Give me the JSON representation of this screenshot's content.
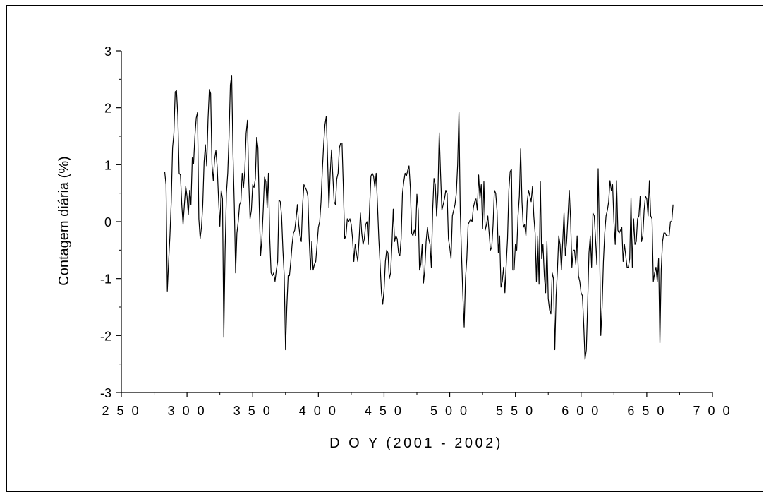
{
  "chart_data": {
    "type": "line",
    "title": "",
    "xlabel": "D O Y  (2001 - 2002)",
    "ylabel": "Contagem diária (%)",
    "xlim": [
      250,
      700
    ],
    "ylim": [
      -3,
      3
    ],
    "x_major_ticks": [
      250,
      300,
      350,
      400,
      450,
      500,
      550,
      600,
      650,
      700
    ],
    "y_major_ticks": [
      -3,
      -2,
      -1,
      0,
      1,
      2,
      3
    ],
    "x_tick_labels": [
      "2 5 0",
      "3 0 0",
      "3 5 0",
      "4 0 0",
      "4 5 0",
      "5 0 0",
      "5 5 0",
      "6 0 0",
      "6 5 0",
      "7 0 0"
    ],
    "y_tick_labels": [
      "-3",
      "-2",
      "-1",
      "0",
      "1",
      "2",
      "3"
    ],
    "grid": false,
    "line_color": "#000000",
    "series": [
      {
        "x": [
          283,
          284,
          285,
          286,
          287,
          288,
          289,
          290,
          291,
          292,
          293,
          294,
          295,
          296,
          297,
          298,
          299,
          300,
          301,
          302,
          303,
          304,
          305,
          306,
          307,
          308,
          309,
          310,
          311,
          312,
          313,
          314,
          315,
          316,
          317,
          318,
          319,
          320,
          321,
          322,
          323,
          324,
          325,
          326,
          327,
          328,
          329,
          330,
          331,
          332,
          333,
          334,
          335,
          336,
          337,
          338,
          339,
          340,
          341,
          342,
          343,
          344,
          345,
          346,
          347,
          348,
          349,
          350,
          351,
          352,
          353,
          354,
          355,
          356,
          357,
          358,
          359,
          360,
          361,
          362,
          363,
          364,
          365,
          366,
          367,
          368,
          369,
          370,
          371,
          372,
          373,
          374,
          375,
          376,
          377,
          378,
          379,
          380,
          381,
          382,
          383,
          384,
          385,
          386,
          387,
          388,
          389,
          390,
          391,
          392,
          393,
          394,
          395,
          396,
          397,
          398,
          399,
          400,
          401,
          402,
          403,
          404,
          405,
          406,
          407,
          408,
          409,
          410,
          411,
          412,
          413,
          414,
          415,
          416,
          417,
          418,
          419,
          420,
          421,
          422,
          423,
          424,
          425,
          426,
          427,
          428,
          429,
          430,
          431,
          432,
          433,
          434,
          435,
          436,
          437,
          438,
          439,
          440,
          441,
          442,
          443,
          444,
          445,
          446,
          447,
          448,
          449,
          450,
          451,
          452,
          453,
          454,
          455,
          456,
          457,
          458,
          459,
          460,
          461,
          462,
          463,
          464,
          465,
          466,
          467,
          468,
          469,
          470,
          471,
          472,
          473,
          474,
          475,
          476,
          477,
          478,
          479,
          480,
          481,
          482,
          483,
          484,
          485,
          486,
          487,
          488,
          489,
          490,
          491,
          492,
          493,
          494,
          495,
          496,
          497,
          498,
          499,
          500,
          501,
          502,
          503,
          504,
          505,
          506,
          507,
          508,
          509,
          510,
          511,
          512,
          513,
          514,
          515,
          516,
          517,
          518,
          519,
          520,
          521,
          522,
          523,
          524,
          525,
          526,
          527,
          528,
          529,
          530,
          531,
          532,
          533,
          534,
          535,
          536,
          537,
          538,
          539,
          540,
          541,
          542,
          543,
          544,
          545,
          546,
          547,
          548,
          549,
          550,
          551,
          552,
          553,
          554,
          555,
          556,
          557,
          558,
          559,
          560,
          561,
          562,
          563,
          564,
          565,
          566,
          567,
          568,
          569,
          570,
          571,
          572,
          573,
          574,
          575,
          576,
          577,
          578,
          579,
          580,
          581,
          582,
          583,
          584,
          585,
          586,
          587,
          588,
          589,
          590,
          591,
          592,
          593,
          594,
          595,
          596,
          597,
          598,
          599,
          600,
          601,
          602,
          603,
          604,
          605,
          606,
          607,
          608,
          609,
          610,
          611,
          612,
          613,
          614,
          615,
          616,
          617,
          618,
          619,
          620,
          621,
          622,
          623,
          624,
          625,
          626,
          627,
          628,
          629,
          630,
          631,
          632,
          633,
          634,
          635,
          636,
          637,
          638,
          639,
          640,
          641,
          642,
          643,
          644,
          645,
          646,
          647,
          648,
          649,
          650,
          651,
          652,
          653,
          654,
          655,
          656,
          657,
          658,
          659,
          660,
          661,
          662,
          663,
          664,
          665,
          666,
          667,
          668,
          669,
          670
        ],
        "y": [
          0.88,
          0.65,
          -1.22,
          -0.7,
          -0.25,
          0.35,
          1.3,
          1.55,
          2.28,
          2.3,
          1.85,
          0.85,
          0.82,
          0.3,
          -0.05,
          0.3,
          0.62,
          0.45,
          0.12,
          0.55,
          0.3,
          1.12,
          1.02,
          1.5,
          1.82,
          1.92,
          0.05,
          -0.3,
          -0.1,
          0.3,
          1.05,
          1.35,
          0.98,
          1.8,
          2.32,
          2.25,
          1.0,
          0.72,
          1.1,
          1.25,
          0.95,
          0.4,
          -0.08,
          0.55,
          0.4,
          -2.03,
          -0.5,
          0.5,
          0.85,
          1.5,
          2.4,
          2.57,
          1.2,
          0.3,
          -0.9,
          -0.2,
          0.0,
          0.3,
          0.35,
          0.85,
          0.6,
          0.9,
          1.55,
          1.78,
          0.7,
          0.05,
          0.2,
          0.65,
          0.6,
          0.75,
          1.48,
          1.3,
          0.25,
          -0.6,
          -0.3,
          0.2,
          0.78,
          0.7,
          0.25,
          0.85,
          -0.3,
          -0.9,
          -0.95,
          -0.9,
          -1.05,
          -0.85,
          -0.7,
          0.38,
          0.35,
          0.1,
          -0.5,
          -0.95,
          -2.25,
          -1.5,
          -0.95,
          -0.95,
          -0.7,
          -0.4,
          -0.2,
          -0.15,
          0.05,
          0.3,
          -0.05,
          -0.25,
          -0.35,
          0.3,
          0.65,
          0.6,
          0.55,
          0.45,
          -0.3,
          -0.85,
          -0.35,
          -0.85,
          -0.75,
          -0.7,
          -0.4,
          -0.1,
          0.0,
          0.35,
          0.9,
          1.35,
          1.7,
          1.85,
          1.1,
          0.25,
          0.85,
          1.26,
          0.8,
          0.35,
          0.3,
          0.75,
          0.85,
          1.3,
          1.38,
          1.38,
          0.6,
          -0.3,
          -0.25,
          0.05,
          0.0,
          0.05,
          -0.05,
          -0.3,
          -0.7,
          -0.4,
          -0.55,
          -0.7,
          -0.3,
          0.15,
          -0.2,
          -0.4,
          -0.3,
          -0.05,
          0.0,
          -0.4,
          0.25,
          0.8,
          0.85,
          0.8,
          0.6,
          0.85,
          0.3,
          -0.3,
          -0.75,
          -1.25,
          -1.45,
          -1.2,
          -0.7,
          -0.5,
          -0.55,
          -1.0,
          -0.9,
          -0.4,
          0.22,
          -0.35,
          -0.25,
          -0.3,
          -0.55,
          -0.6,
          -0.3,
          0.5,
          0.7,
          0.85,
          0.8,
          0.9,
          0.98,
          0.6,
          -0.2,
          -0.25,
          -0.15,
          -0.25,
          0.48,
          0.2,
          -0.85,
          -0.75,
          -0.4,
          -1.08,
          -0.85,
          -0.35,
          -0.1,
          -0.3,
          -0.4,
          -0.8,
          0.2,
          0.76,
          0.65,
          0.1,
          0.5,
          1.56,
          0.85,
          0.2,
          0.3,
          0.4,
          0.55,
          0.5,
          -0.3,
          -0.45,
          -0.65,
          0.1,
          0.2,
          0.3,
          0.5,
          1.0,
          1.92,
          0.2,
          -0.6,
          -1.3,
          -1.85,
          -1.0,
          -0.65,
          -0.05,
          0.0,
          0.05,
          0.0,
          0.25,
          0.35,
          0.4,
          0.2,
          0.82,
          0.4,
          0.65,
          -0.12,
          0.7,
          -0.15,
          -0.05,
          0.1,
          -0.2,
          -0.5,
          -0.45,
          -0.05,
          0.55,
          0.5,
          0.2,
          -0.55,
          -0.25,
          -1.15,
          -1.05,
          -0.8,
          -1.25,
          -0.75,
          -0.3,
          0.55,
          0.88,
          0.92,
          -0.85,
          -0.85,
          -0.4,
          -0.5,
          0.1,
          0.45,
          1.28,
          0.35,
          -0.1,
          -0.05,
          -0.25,
          0.35,
          0.55,
          0.45,
          0.35,
          0.62,
          0.1,
          -0.2,
          -1.05,
          -0.25,
          -1.1,
          0.7,
          -0.65,
          -0.4,
          -0.95,
          -1.25,
          -0.35,
          -1.35,
          -1.55,
          -1.62,
          -0.9,
          -1.0,
          -2.25,
          -1.3,
          -0.85,
          -0.25,
          -0.4,
          -0.85,
          -0.35,
          0.15,
          -0.6,
          -0.35,
          0.1,
          0.55,
          0.05,
          -0.8,
          -0.5,
          -0.5,
          -0.75,
          -0.25,
          -0.95,
          -1.05,
          -1.25,
          -1.3,
          -1.8,
          -2.42,
          -2.25,
          -1.45,
          -0.55,
          -0.25,
          -0.8,
          0.15,
          0.1,
          -0.3,
          -0.75,
          0.93,
          -0.3,
          -2.0,
          -1.5,
          -0.7,
          -0.2,
          0.1,
          0.2,
          0.35,
          0.72,
          0.55,
          0.65,
          0.0,
          -0.4,
          0.72,
          -0.15,
          -0.2,
          -0.15,
          -0.1,
          -0.7,
          -0.4,
          -0.6,
          -0.8,
          -0.8,
          -0.65,
          0.42,
          -0.8,
          0.05,
          -0.4,
          -0.35,
          0.05,
          0.1,
          0.45,
          -0.35,
          -0.25,
          0.2,
          0.45,
          0.4,
          0.1,
          0.72,
          0.1,
          0.05,
          -1.05,
          -0.9,
          -0.8,
          -1.05,
          -0.65,
          -2.13,
          -0.85,
          -0.35,
          -0.2,
          -0.2,
          -0.25,
          -0.25,
          -0.25,
          0.0,
          0.0,
          0.3
        ]
      }
    ]
  }
}
